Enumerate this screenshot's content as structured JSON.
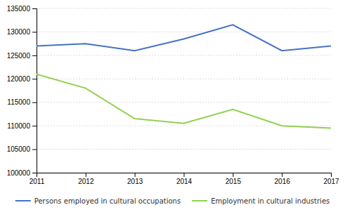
{
  "chart_data": {
    "type": "line",
    "x": [
      2011,
      2012,
      2013,
      2014,
      2015,
      2016,
      2017
    ],
    "series": [
      {
        "name": "Persons employed in cultural occupations",
        "color": "#4472C4",
        "values": [
          127000,
          127500,
          126000,
          128500,
          131500,
          126000,
          127000
        ]
      },
      {
        "name": "Employment in cultural industries",
        "color": "#92D050",
        "values": [
          121000,
          118000,
          111500,
          110500,
          113500,
          110000,
          109500
        ]
      }
    ],
    "xlim": [
      2011,
      2017
    ],
    "xticks": [
      2011,
      2012,
      2013,
      2014,
      2015,
      2016,
      2017
    ],
    "ylim": [
      100000,
      135000
    ],
    "yticks": [
      100000,
      105000,
      110000,
      115000,
      120000,
      125000,
      130000,
      135000
    ],
    "grid": true,
    "legend": "bottom"
  }
}
